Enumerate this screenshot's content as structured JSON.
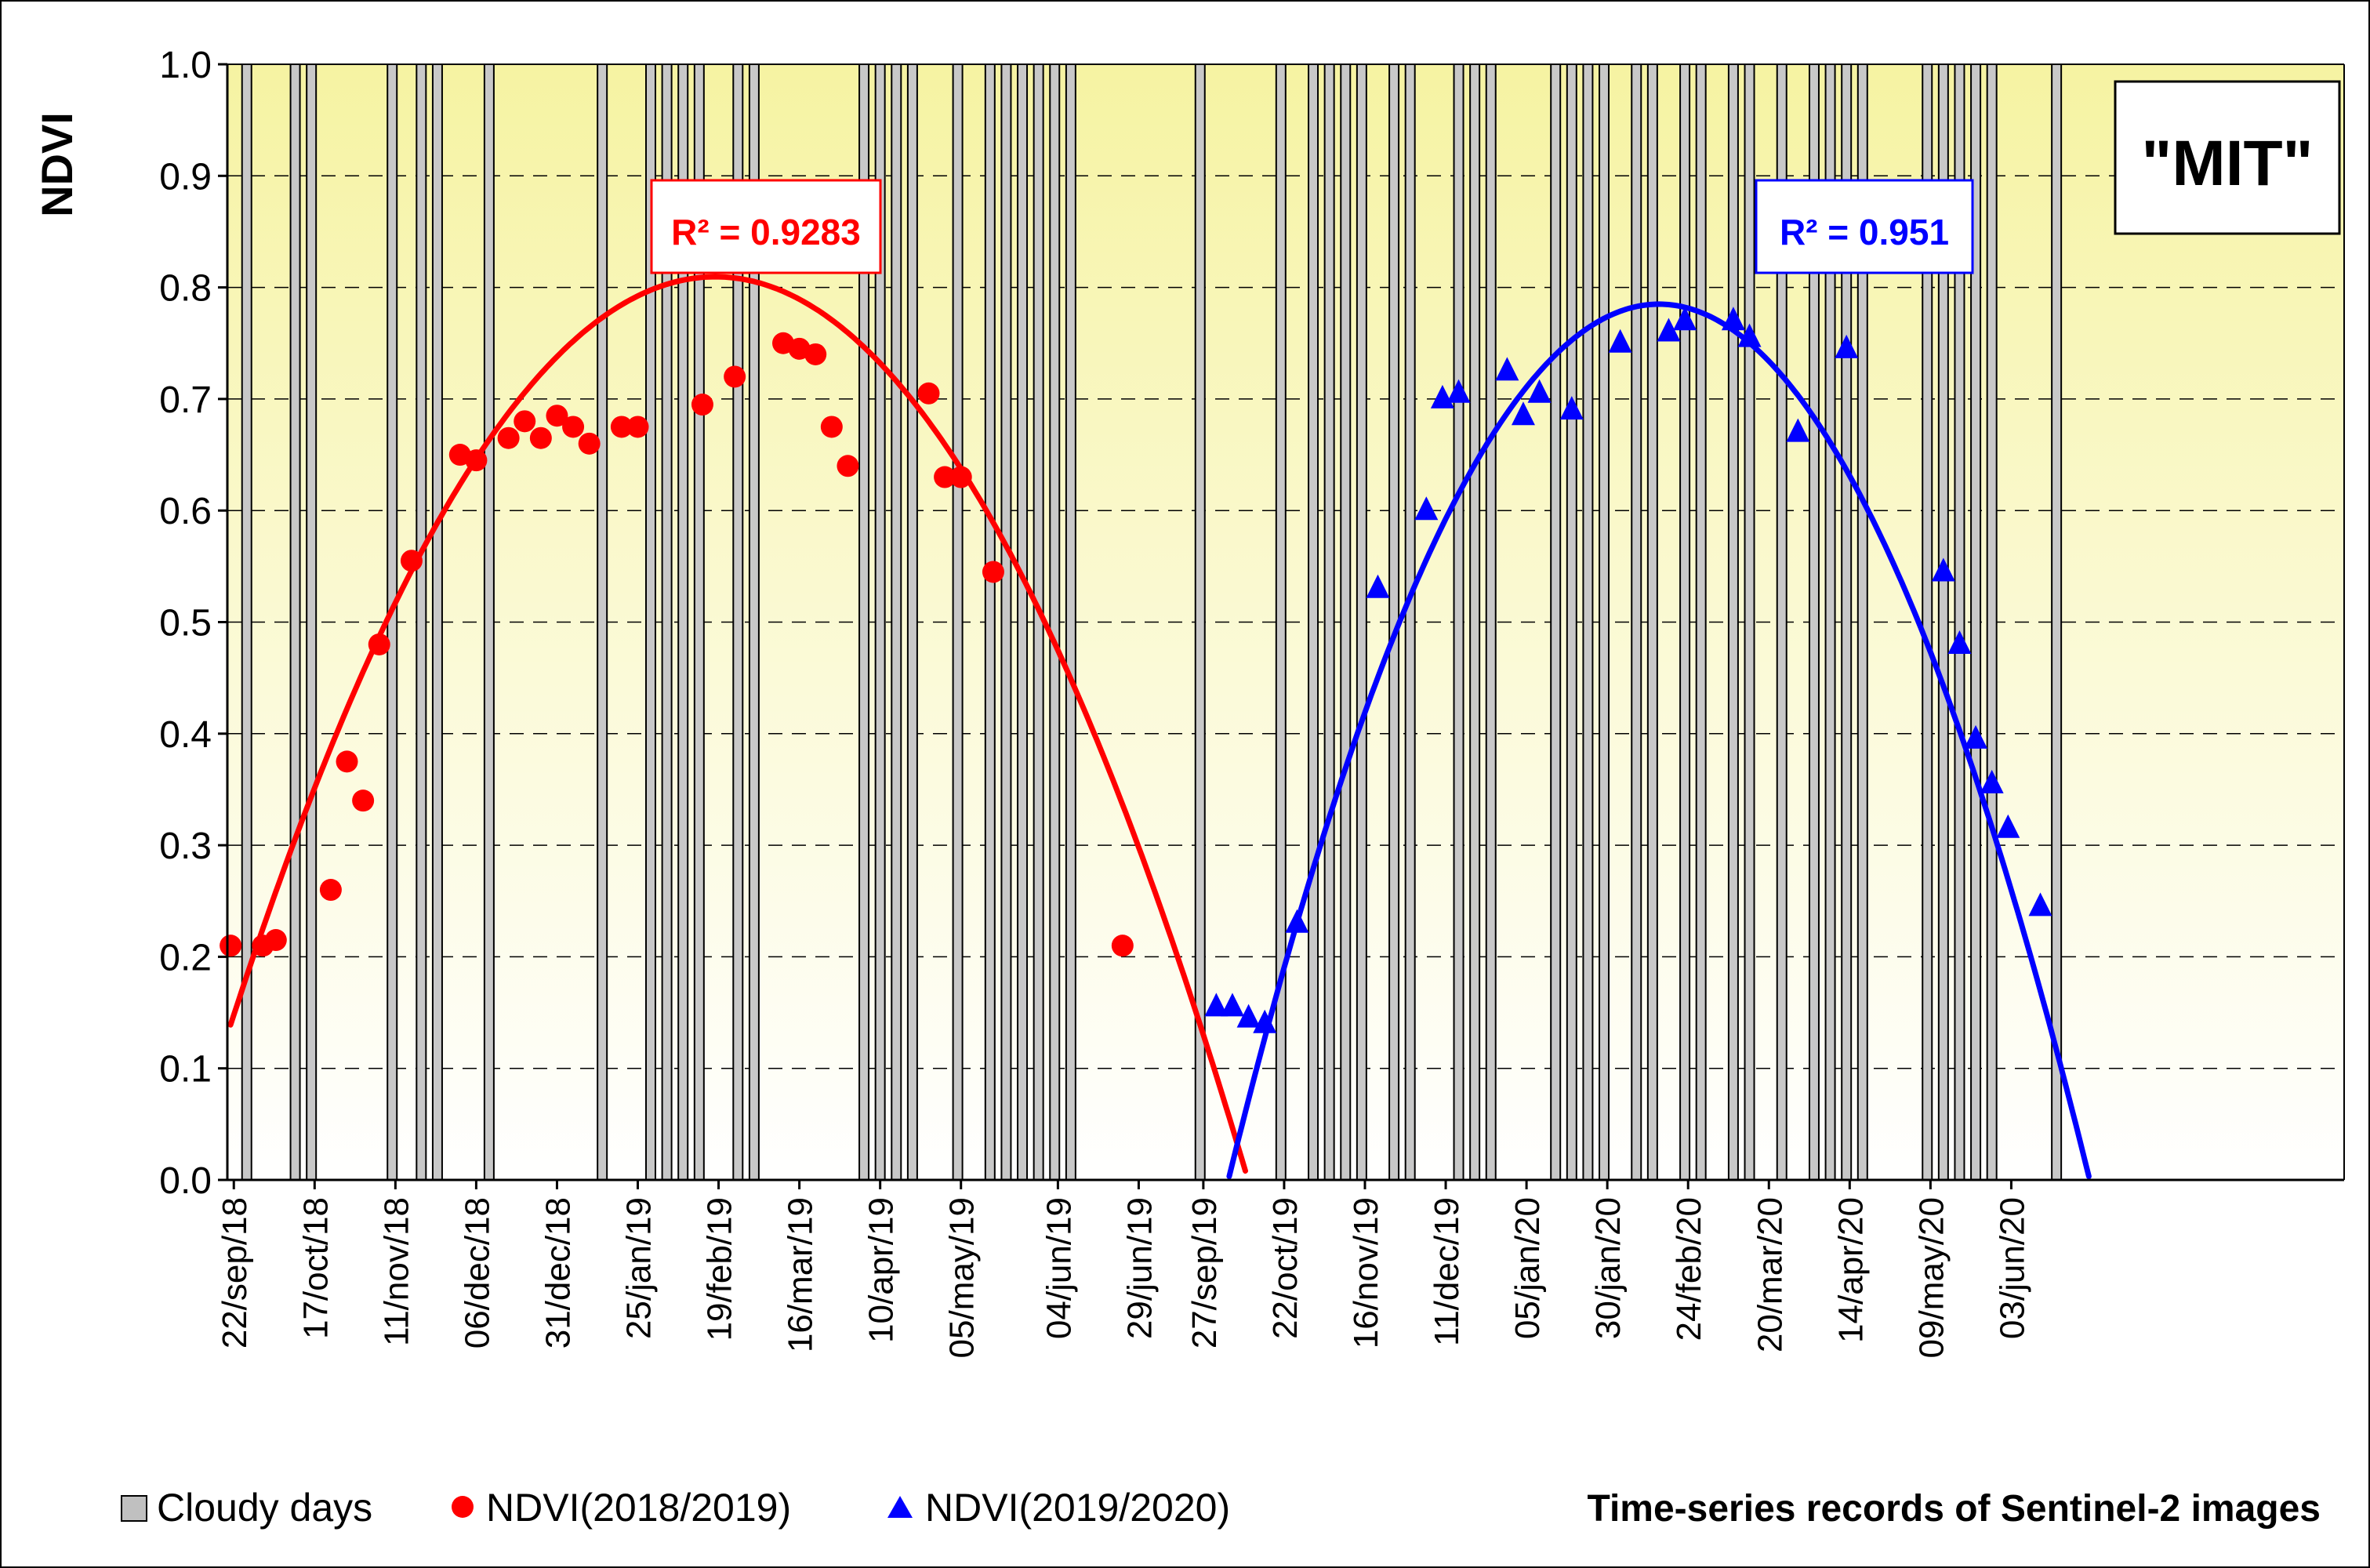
{
  "chart_data": {
    "type": "scatter",
    "title": "\"MIT\"",
    "ylabel": "NDVI",
    "xlabel": "Time-series records of Sentinel-2 images",
    "ylim": [
      0,
      1
    ],
    "xlim": [
      0,
      655
    ],
    "y_ticks": [
      0.0,
      0.1,
      0.2,
      0.3,
      0.4,
      0.5,
      0.6,
      0.7,
      0.8,
      0.9,
      1.0
    ],
    "y_tick_labels": [
      "0.0",
      "0.1",
      "0.2",
      "0.3",
      "0.4",
      "0.5",
      "0.6",
      "0.7",
      "0.8",
      "0.9",
      "1.0"
    ],
    "grid": true,
    "legend_position": "bottom-left",
    "x_ticks": [
      {
        "day": 2,
        "label": "22/sep/18"
      },
      {
        "day": 27,
        "label": "17/oct/18"
      },
      {
        "day": 52,
        "label": "11/nov/18"
      },
      {
        "day": 77,
        "label": "06/dec/18"
      },
      {
        "day": 102,
        "label": "31/dec/18"
      },
      {
        "day": 127,
        "label": "25/jan/19"
      },
      {
        "day": 152,
        "label": "19/feb/19"
      },
      {
        "day": 177,
        "label": "16/mar/19"
      },
      {
        "day": 202,
        "label": "10/apr/19"
      },
      {
        "day": 227,
        "label": "05/may/19"
      },
      {
        "day": 257,
        "label": "04/jun/19"
      },
      {
        "day": 282,
        "label": "29/jun/19"
      },
      {
        "day": 302,
        "label": "27/sep/19"
      },
      {
        "day": 327,
        "label": "22/oct/19"
      },
      {
        "day": 352,
        "label": "16/nov/19"
      },
      {
        "day": 377,
        "label": "11/dec/19"
      },
      {
        "day": 402,
        "label": "05/jan/20"
      },
      {
        "day": 427,
        "label": "30/jan/20"
      },
      {
        "day": 452,
        "label": "24/feb/20"
      },
      {
        "day": 477,
        "label": "20/mar/20"
      },
      {
        "day": 502,
        "label": "14/apr/20"
      },
      {
        "day": 527,
        "label": "09/may/20"
      },
      {
        "day": 552,
        "label": "03/jun/20"
      }
    ],
    "cloudy_days": {
      "name": "Cloudy days",
      "value": 1.0,
      "days": [
        6,
        21,
        26,
        51,
        60,
        65,
        81,
        116,
        131,
        136,
        141,
        146,
        158,
        163,
        197,
        202,
        207,
        212,
        226,
        236,
        241,
        246,
        251,
        256,
        261,
        301,
        326,
        336,
        341,
        346,
        351,
        361,
        366,
        381,
        386,
        391,
        411,
        416,
        421,
        426,
        436,
        441,
        451,
        456,
        466,
        471,
        481,
        491,
        496,
        501,
        506,
        526,
        531,
        536,
        541,
        546,
        566
      ]
    },
    "series": [
      {
        "name": "NDVI(2018/2019)",
        "marker": "circle",
        "color": "#ff0000",
        "r_squared_label": "R² = 0.9283",
        "points": [
          [
            1,
            0.21
          ],
          [
            11,
            0.21
          ],
          [
            15,
            0.215
          ],
          [
            32,
            0.26
          ],
          [
            37,
            0.375
          ],
          [
            42,
            0.34
          ],
          [
            47,
            0.48
          ],
          [
            57,
            0.555
          ],
          [
            72,
            0.65
          ],
          [
            77,
            0.645
          ],
          [
            87,
            0.665
          ],
          [
            92,
            0.68
          ],
          [
            97,
            0.665
          ],
          [
            102,
            0.685
          ],
          [
            107,
            0.675
          ],
          [
            112,
            0.66
          ],
          [
            122,
            0.675
          ],
          [
            127,
            0.675
          ],
          [
            147,
            0.695
          ],
          [
            157,
            0.72
          ],
          [
            172,
            0.75
          ],
          [
            177,
            0.745
          ],
          [
            182,
            0.74
          ],
          [
            187,
            0.675
          ],
          [
            192,
            0.64
          ],
          [
            217,
            0.705
          ],
          [
            222,
            0.63
          ],
          [
            227,
            0.63
          ],
          [
            237,
            0.545
          ],
          [
            277,
            0.21
          ]
        ],
        "trend_coeffs": [
          0.13,
          0.009,
          -2.98e-05
        ],
        "trend_range": [
          1,
          315
        ]
      },
      {
        "name": "NDVI(2019/2020)",
        "marker": "triangle",
        "color": "#0000ff",
        "r_squared_label": "R² = 0.951",
        "points": [
          [
            306,
            0.155
          ],
          [
            311,
            0.155
          ],
          [
            316,
            0.145
          ],
          [
            321,
            0.14
          ],
          [
            331,
            0.23
          ],
          [
            356,
            0.53
          ],
          [
            371,
            0.6
          ],
          [
            376,
            0.7
          ],
          [
            381,
            0.705
          ],
          [
            396,
            0.725
          ],
          [
            401,
            0.685
          ],
          [
            406,
            0.705
          ],
          [
            416,
            0.69
          ],
          [
            431,
            0.75
          ],
          [
            446,
            0.76
          ],
          [
            451,
            0.77
          ],
          [
            466,
            0.77
          ],
          [
            471,
            0.755
          ],
          [
            486,
            0.67
          ],
          [
            501,
            0.745
          ],
          [
            531,
            0.545
          ],
          [
            536,
            0.48
          ],
          [
            541,
            0.395
          ],
          [
            546,
            0.355
          ],
          [
            551,
            0.315
          ],
          [
            561,
            0.245
          ]
        ],
        "trend_coeffs": [
          0.785,
          0.0,
          -4.42e-05
        ],
        "trend_center": 443,
        "trend_range": [
          294,
          576
        ]
      }
    ],
    "legend": [
      {
        "label": "Cloudy days"
      },
      {
        "label": "NDVI(2018/2019)"
      },
      {
        "label": "NDVI(2019/2020)"
      }
    ]
  }
}
